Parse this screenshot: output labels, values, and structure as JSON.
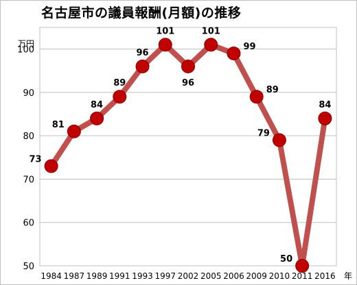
{
  "chart_data": {
    "type": "line",
    "title": "名古屋市の議員報酬(月額)の推移",
    "y_unit_label": "万円",
    "x_unit_label": "年",
    "categories": [
      "1984",
      "1987",
      "1989",
      "1991",
      "1993",
      "1997",
      "2002",
      "2005",
      "2006",
      "2009",
      "2010",
      "2011",
      "2016"
    ],
    "series": [
      {
        "values": [
          73,
          81,
          84,
          89,
          96,
          101,
          96,
          101,
          99,
          89,
          79,
          50,
          84
        ]
      }
    ],
    "data_labels": [
      "73",
      "81",
      "84",
      "89",
      "96",
      "101",
      "96",
      "101",
      "99",
      "89",
      "79",
      "50",
      "84"
    ],
    "ylim": [
      50,
      105
    ],
    "yticks": [
      50,
      60,
      70,
      80,
      90,
      100
    ],
    "ytick_labels": [
      "50",
      "60",
      "70",
      "80",
      "90",
      "100"
    ],
    "grid": true,
    "colors": {
      "line": "#c0504d",
      "marker": "#c00000",
      "marker_edge": "#8b0000",
      "grid": "#bfbfbf"
    }
  }
}
